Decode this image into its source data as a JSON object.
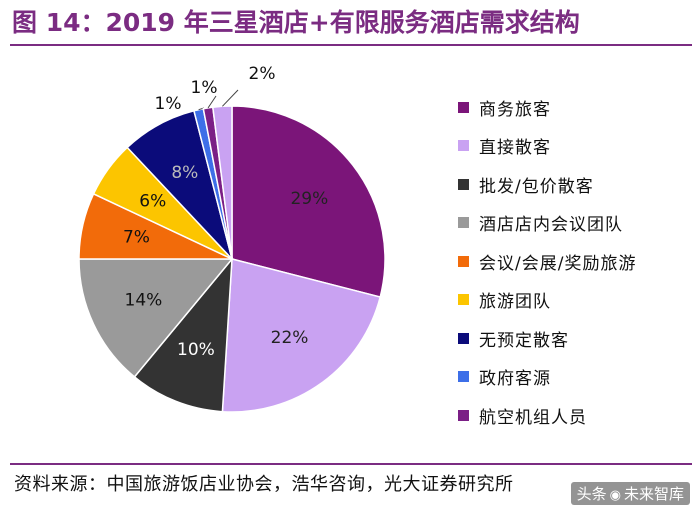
{
  "title": "图 14：2019 年三星酒店+有限服务酒店需求结构",
  "source": "资料来源：中国旅游饭店业协会，浩华咨询，光大证券研究所",
  "watermark": {
    "prefix": "头条",
    "account": "未来智库"
  },
  "chart_data": {
    "type": "pie",
    "title": "图 14：2019 年三星酒店+有限服务酒店需求结构",
    "start_angle_deg": 0,
    "direction": "clockwise",
    "slices": [
      {
        "name": "商务旅客",
        "value": 29,
        "label": "29%",
        "color": "#7b1579",
        "label_color": "#222222"
      },
      {
        "name": "直接散客",
        "value": 22,
        "label": "22%",
        "color": "#c9a2f2",
        "label_color": "#222222"
      },
      {
        "name": "批发/包价散客",
        "value": 10,
        "label": "10%",
        "color": "#333333",
        "label_color": "#ffffff"
      },
      {
        "name": "酒店店内会议团队",
        "value": 14,
        "label": "14%",
        "color": "#9a9a9a",
        "label_color": "#111111"
      },
      {
        "name": "会议/会展/奖励旅游",
        "value": 7,
        "label": "7%",
        "color": "#f26b0a",
        "label_color": "#111111"
      },
      {
        "name": "旅游团队",
        "value": 6,
        "label": "6%",
        "color": "#fcc500",
        "label_color": "#111111"
      },
      {
        "name": "无预定散客",
        "value": 8,
        "label": "8%",
        "color": "#0b0b7a",
        "label_color": "#bbbbbb"
      },
      {
        "name": "政府客源",
        "value": 1,
        "label": "1%",
        "color": "#3d6fe8",
        "label_color": "#111111"
      },
      {
        "name": "航空机组人员",
        "value": 1,
        "label": "1%",
        "color": "#7b1f86",
        "label_color": "#111111"
      },
      {
        "name": "直接散客",
        "value": 2,
        "label": "2%",
        "color": "#c9a2f2",
        "label_color": "#111111"
      }
    ],
    "legend": [
      {
        "name": "商务旅客",
        "color": "#7b1579"
      },
      {
        "name": "直接散客",
        "color": "#c9a2f2"
      },
      {
        "name": "批发/包价散客",
        "color": "#333333"
      },
      {
        "name": "酒店店内会议团队",
        "color": "#9a9a9a"
      },
      {
        "name": "会议/会展/奖励旅游",
        "color": "#f26b0a"
      },
      {
        "name": "旅游团队",
        "color": "#fcc500"
      },
      {
        "name": "无预定散客",
        "color": "#0b0b7a"
      },
      {
        "name": "政府客源",
        "color": "#3d6fe8"
      },
      {
        "name": "航空机组人员",
        "color": "#7b1f86"
      }
    ],
    "legend_position": "right"
  }
}
